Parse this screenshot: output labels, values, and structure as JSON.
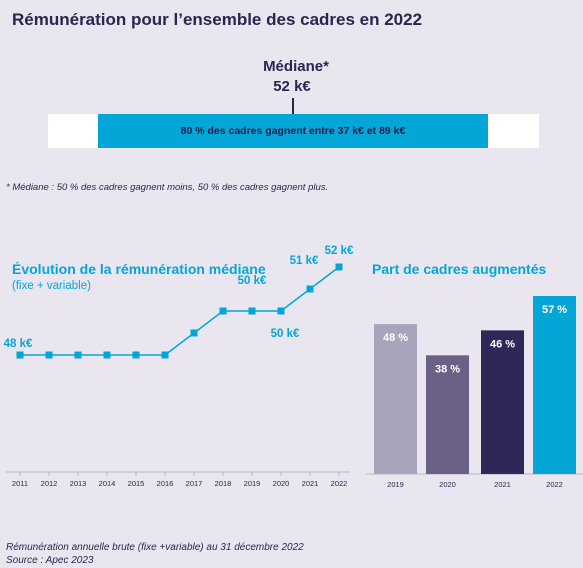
{
  "header": {
    "title": "Rémunération pour l’ensemble des cadres en 2022"
  },
  "median": {
    "label": "Médiane*",
    "value": "52 k€",
    "range_text": "80 % des cadres gagnent entre 37 k€ et 89 k€"
  },
  "footnote": "* Médiane : 50 % des cadres gagnent moins, 50 % des cadres gagnent plus.",
  "footer": {
    "line1": "Rémunération annuelle brute (fixe +variable) au 31 décembre 2022",
    "line2": "Source : Apec 2023"
  },
  "colors": {
    "accent": "#04a6d7",
    "dark": "#2b2550",
    "bar2019": "#a9a3bb",
    "bar2020": "#6b6187",
    "bar2021": "#2e2858",
    "bar2022": "#04a6d7"
  },
  "chart_data": [
    {
      "type": "line",
      "title": "Évolution de la rémunération médiane",
      "subtitle": "(fixe + variable)",
      "x": [
        "2011",
        "2012",
        "2013",
        "2014",
        "2015",
        "2016",
        "2017",
        "2018",
        "2019",
        "2020",
        "2021",
        "2022"
      ],
      "values": [
        48,
        48,
        48,
        48,
        48,
        48,
        49,
        50,
        50,
        50,
        51,
        52
      ],
      "data_labels": [
        {
          "index": 0,
          "text": "48 k€"
        },
        {
          "index": 8,
          "text": "50 k€"
        },
        {
          "index": 9,
          "text": "50 k€"
        },
        {
          "index": 10,
          "text": "51 k€"
        },
        {
          "index": 11,
          "text": "52 k€"
        }
      ]
    },
    {
      "type": "bar",
      "title": "Part de cadres augmentés",
      "categories": [
        "2019",
        "2020",
        "2021",
        "2022"
      ],
      "values": [
        48,
        38,
        46,
        57
      ],
      "labels": [
        "48 %",
        "38 %",
        "46 %",
        "57 %"
      ],
      "unit": "%"
    }
  ]
}
